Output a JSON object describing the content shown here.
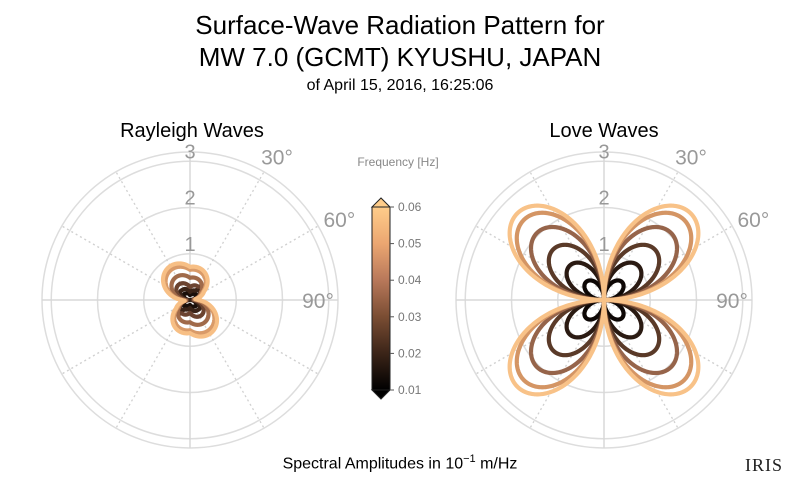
{
  "title": {
    "line1": "Surface-Wave Radiation Pattern for",
    "line2": "MW 7.0 (GCMT) KYUSHU, JAPAN",
    "line3": "of April 15, 2016, 16:25:06"
  },
  "footer": {
    "prefix": "Spectral Amplitudes in ",
    "base": "10",
    "exponent": "−1",
    "unit": " m/Hz"
  },
  "logo_text": "IRIS",
  "colorbar": {
    "label": "Frequency [Hz]",
    "ticks": [
      "0.01",
      "0.02",
      "0.03",
      "0.04",
      "0.05",
      "0.06"
    ],
    "tick_values": [
      0.01,
      0.02,
      0.03,
      0.04,
      0.05,
      0.06
    ],
    "range": [
      0.01,
      0.06
    ],
    "colors": [
      "#000000",
      "#3b2418",
      "#7a4d33",
      "#b8785a",
      "#eba671",
      "#ffcd8a"
    ]
  },
  "chart_data": [
    {
      "type": "polar",
      "title": "Rayleigh Waves",
      "radial_ticks": [
        "1",
        "2",
        "3"
      ],
      "radial_tick_values": [
        1,
        2,
        3
      ],
      "rmax": 3.2,
      "angle_ticks": [
        "30°",
        "60°",
        "90°"
      ],
      "angle_tick_values": [
        30,
        60,
        90
      ],
      "grid": true,
      "series": [
        {
          "frequency": 0.01,
          "color": "#1a0f0a",
          "pattern": "rayleigh",
          "lobe_amp": 0.18,
          "axial_amp": 0.12
        },
        {
          "frequency": 0.02,
          "color": "#3b2418",
          "pattern": "rayleigh",
          "lobe_amp": 0.28,
          "axial_amp": 0.2
        },
        {
          "frequency": 0.03,
          "color": "#6b4330",
          "pattern": "rayleigh",
          "lobe_amp": 0.38,
          "axial_amp": 0.32
        },
        {
          "frequency": 0.04,
          "color": "#a06a4a",
          "pattern": "rayleigh",
          "lobe_amp": 0.3,
          "axial_amp": 0.55
        },
        {
          "frequency": 0.05,
          "color": "#d99a68",
          "pattern": "rayleigh",
          "lobe_amp": 0.35,
          "axial_amp": 0.75
        },
        {
          "frequency": 0.06,
          "color": "#f7bf85",
          "pattern": "rayleigh",
          "lobe_amp": 0.4,
          "axial_amp": 0.82
        }
      ]
    },
    {
      "type": "polar",
      "title": "Love Waves",
      "radial_ticks": [
        "1",
        "2",
        "3"
      ],
      "radial_tick_values": [
        1,
        2,
        3
      ],
      "rmax": 3.2,
      "angle_ticks": [
        "30°",
        "60°",
        "90°"
      ],
      "angle_tick_values": [
        30,
        60,
        90
      ],
      "grid": true,
      "series": [
        {
          "frequency": 0.01,
          "color": "#0d0705",
          "pattern": "love",
          "amp": 0.55
        },
        {
          "frequency": 0.02,
          "color": "#2a1a12",
          "pattern": "love",
          "amp": 1.05
        },
        {
          "frequency": 0.03,
          "color": "#5a3a28",
          "pattern": "love",
          "amp": 1.55
        },
        {
          "frequency": 0.04,
          "color": "#96644a",
          "pattern": "love",
          "amp": 2.05
        },
        {
          "frequency": 0.05,
          "color": "#d49564",
          "pattern": "love",
          "amp": 2.45
        },
        {
          "frequency": 0.06,
          "color": "#f8c288",
          "pattern": "love",
          "amp": 2.65
        }
      ]
    }
  ]
}
